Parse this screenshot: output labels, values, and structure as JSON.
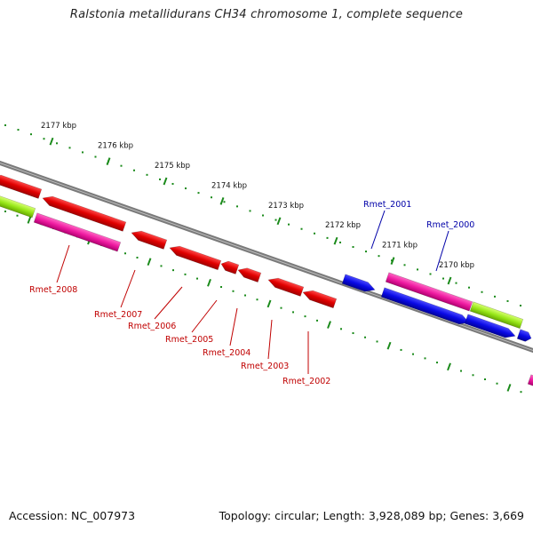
{
  "map": {
    "title": "Ralstonia metallidurans CH34 chromosome 1, complete sequence",
    "accession": "Accession: NC_007973",
    "summary": "Topology: circular; Length: 3,928,089 bp; Genes: 3,669"
  },
  "ruler": {
    "color": "#1a8a1a",
    "ticks": [
      {
        "label": "2177 kbp"
      },
      {
        "label": "2176 kbp"
      },
      {
        "label": "2175 kbp"
      },
      {
        "label": "2174 kbp"
      },
      {
        "label": "2173 kbp"
      },
      {
        "label": "2172 kbp"
      },
      {
        "label": "2171 kbp"
      },
      {
        "label": "2170 kbp"
      }
    ]
  },
  "legend_colors": {
    "backbone": "#7a7a7a",
    "forward_gene": "#1010e0",
    "reverse_gene": "#e01010",
    "rna_magenta": "#ee1aa0",
    "rna_green": "#99e81a"
  },
  "gene_labels": {
    "forward": [
      {
        "name": "Rmet_2001",
        "color": "#0000a8"
      },
      {
        "name": "Rmet_2000",
        "color": "#0000a8"
      }
    ],
    "reverse": [
      {
        "name": "Rmet_2008",
        "color": "#c00000"
      },
      {
        "name": "Rmet_2007",
        "color": "#c00000"
      },
      {
        "name": "Rmet_2006",
        "color": "#c00000"
      },
      {
        "name": "Rmet_2005",
        "color": "#c00000"
      },
      {
        "name": "Rmet_2004",
        "color": "#c00000"
      },
      {
        "name": "Rmet_2003",
        "color": "#c00000"
      },
      {
        "name": "Rmet_2002",
        "color": "#c00000"
      }
    ]
  }
}
